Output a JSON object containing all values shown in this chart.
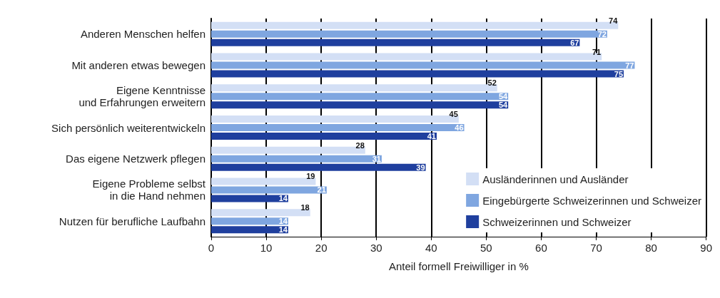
{
  "chart_data": {
    "type": "bar",
    "orientation": "horizontal",
    "xlabel": "Anteil formell Freiwilliger in %",
    "categories": [
      "Anderen Menschen helfen",
      "Mit anderen etwas bewegen",
      "Eigene Kenntnisse\nund Erfahrungen erweitern",
      "Sich persönlich weiterentwickeln",
      "Das eigene Netzwerk pflegen",
      "Eigene Probleme selbst\nin die Hand nehmen",
      "Nutzen für berufliche Laufbahn"
    ],
    "series": [
      {
        "name": "Ausländerinnen und Ausländer",
        "color": "#d3dff5",
        "values": [
          74,
          71,
          52,
          45,
          28,
          19,
          18
        ]
      },
      {
        "name": "Eingebürgerte Schweizerinnen und Schweizer",
        "color": "#7fa6e0",
        "values": [
          72,
          77,
          54,
          46,
          31,
          21,
          14
        ]
      },
      {
        "name": "Schweizerinnen und Schweizer",
        "color": "#1f3f9e",
        "values": [
          67,
          75,
          54,
          41,
          39,
          14,
          14
        ]
      }
    ],
    "xlim": [
      0,
      90
    ],
    "xticks": [
      0,
      10,
      20,
      30,
      40,
      50,
      60,
      70,
      80,
      90
    ],
    "grid": "x",
    "legend": "bottom right",
    "data_labels": true
  }
}
